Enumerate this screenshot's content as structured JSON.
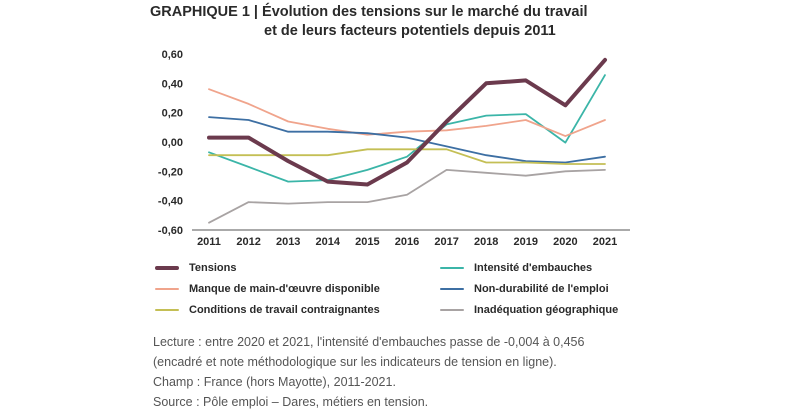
{
  "header": {
    "title_line1": "GRAPHIQUE 1 | Évolution des tensions sur le marché du travail",
    "title_line2": "et de leurs facteurs potentiels depuis 2011"
  },
  "chart_data": {
    "type": "line",
    "title": "GRAPHIQUE 1 | Évolution des tensions sur le marché du travail et de leurs facteurs potentiels depuis 2011",
    "x": [
      "2011",
      "2012",
      "2013",
      "2014",
      "2015",
      "2016",
      "2017",
      "2018",
      "2019",
      "2020",
      "2021"
    ],
    "ylim": [
      -0.6,
      0.6
    ],
    "yticks": [
      "0,60",
      "0,40",
      "0,20",
      "0,00",
      "-0,20",
      "-0,40",
      "-0,60"
    ],
    "ytick_values": [
      0.6,
      0.4,
      0.2,
      0.0,
      -0.2,
      -0.4,
      -0.6
    ],
    "grid": false,
    "legend_position": "bottom",
    "series": [
      {
        "name": "Tensions",
        "color": "#6b3a4d",
        "values": [
          0.03,
          0.03,
          -0.13,
          -0.27,
          -0.29,
          -0.14,
          0.14,
          0.4,
          0.42,
          0.25,
          0.56
        ]
      },
      {
        "name": "Intensité d'embauches",
        "color": "#3bb5a8",
        "values": [
          -0.07,
          -0.17,
          -0.27,
          -0.26,
          -0.19,
          -0.1,
          0.12,
          0.18,
          0.19,
          -0.004,
          0.456
        ]
      },
      {
        "name": "Manque de main-d'œuvre disponible",
        "color": "#f0a48c",
        "values": [
          0.36,
          0.26,
          0.14,
          0.09,
          0.05,
          0.07,
          0.08,
          0.11,
          0.15,
          0.04,
          0.15
        ]
      },
      {
        "name": "Non-durabilité de l'emploi",
        "color": "#3d6fa3",
        "values": [
          0.17,
          0.15,
          0.07,
          0.07,
          0.06,
          0.03,
          -0.03,
          -0.09,
          -0.13,
          -0.14,
          -0.1
        ]
      },
      {
        "name": "Conditions de travail contraignantes",
        "color": "#c4bf55",
        "values": [
          -0.09,
          -0.09,
          -0.09,
          -0.09,
          -0.05,
          -0.05,
          -0.05,
          -0.14,
          -0.14,
          -0.15,
          -0.15
        ]
      },
      {
        "name": "Inadéquation géographique",
        "color": "#a8a3a3",
        "values": [
          -0.55,
          -0.41,
          -0.42,
          -0.41,
          -0.41,
          -0.36,
          -0.19,
          -0.21,
          -0.23,
          -0.2,
          -0.19
        ]
      }
    ]
  },
  "legend": {
    "items": [
      {
        "label": "Tensions"
      },
      {
        "label": "Intensité d'embauches"
      },
      {
        "label": "Manque de main-d'œuvre disponible"
      },
      {
        "label": "Non-durabilité de l'emploi"
      },
      {
        "label": "Conditions de travail contraignantes"
      },
      {
        "label": "Inadéquation géographique"
      }
    ]
  },
  "notes": {
    "lecture_line1": "Lecture : entre 2020 et 2021, l'intensité d'embauches passe de -0,004 à 0,456",
    "lecture_line2": "(encadré et note méthodologique sur les indicateurs de tension en ligne).",
    "champ": "Champ : France (hors Mayotte), 2011-2021.",
    "source": "Source : Pôle emploi – Dares, métiers en tension."
  }
}
